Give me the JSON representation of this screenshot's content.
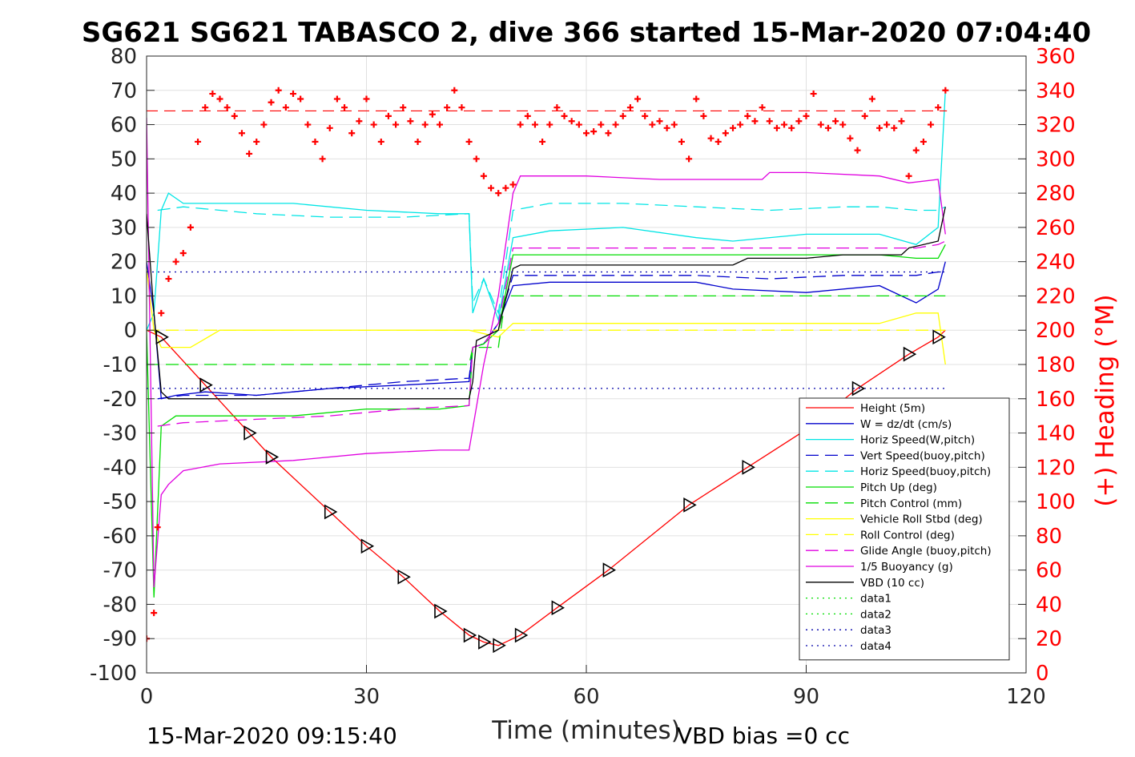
{
  "title": "SG621 SG621 TABASCO 2, dive 366 started 15-Mar-2020 07:04:40",
  "footer": {
    "end_time": "15-Mar-2020 09:15:40",
    "vbd_bias": "VBD bias =0 cc"
  },
  "chart_data": {
    "type": "line",
    "title": "SG621 SG621 TABASCO 2, dive 366 started 15-Mar-2020 07:04:40",
    "xlabel": "Time (minutes)",
    "ylabel": "",
    "y2label": "(+) Heading (°M)",
    "xlim": [
      0,
      120
    ],
    "ylim": [
      -100,
      80
    ],
    "y2lim": [
      0,
      360
    ],
    "xticks": [
      "0",
      "30",
      "60",
      "90",
      "120"
    ],
    "yticks": [
      "80",
      "70",
      "60",
      "50",
      "40",
      "30",
      "20",
      "10",
      "0",
      "-10",
      "-20",
      "-30",
      "-40",
      "-50",
      "-60",
      "-70",
      "-80",
      "-90",
      "-100"
    ],
    "y2ticks": [
      "360",
      "340",
      "320",
      "300",
      "280",
      "260",
      "240",
      "220",
      "200",
      "180",
      "160",
      "140",
      "120",
      "100",
      "80",
      "60",
      "40",
      "20",
      "0"
    ],
    "grid": true,
    "legend_position": "lower-right",
    "series": [
      {
        "name": "Height (5m)",
        "color": "#ff0000",
        "style": "solid",
        "x": [
          0,
          2,
          8,
          14,
          17,
          25,
          30,
          35,
          40,
          44,
          46,
          48,
          51,
          56,
          63,
          74,
          82,
          90,
          97,
          104,
          108,
          109
        ],
        "y": [
          0,
          -2,
          -16,
          -30,
          -37,
          -53,
          -63,
          -72,
          -82,
          -89,
          -91,
          -92,
          -89,
          -81,
          -70,
          -51,
          -40,
          -29,
          -17,
          -7,
          -2,
          0
        ]
      },
      {
        "name": "W = dz/dt (cm/s)",
        "color": "#0000cc",
        "style": "solid",
        "x": [
          0,
          1,
          2,
          4,
          8,
          15,
          25,
          35,
          44,
          44.5,
          46,
          48,
          50,
          55,
          65,
          75,
          80,
          90,
          100,
          105,
          108,
          109
        ],
        "y": [
          20,
          5,
          -20,
          -19,
          -18,
          -19,
          -17,
          -16,
          -15,
          -5,
          -4,
          2,
          13,
          14,
          14,
          14,
          12,
          11,
          13,
          8,
          12,
          20
        ]
      },
      {
        "name": "Horiz Speed(W,pitch)",
        "color": "#00e5e5",
        "style": "solid",
        "x": [
          0,
          1,
          2,
          3,
          5,
          10,
          20,
          30,
          40,
          44,
          44.5,
          46,
          48,
          50,
          55,
          65,
          75,
          80,
          90,
          100,
          105,
          108,
          109
        ],
        "y": [
          0,
          5,
          35,
          40,
          37,
          37,
          37,
          35,
          34,
          34,
          5,
          15,
          3,
          27,
          29,
          30,
          27,
          26,
          28,
          28,
          25,
          30,
          70
        ]
      },
      {
        "name": "Vert Speed(buoy,pitch)",
        "color": "#0000cc",
        "style": "dashed",
        "x": [
          1.5,
          5,
          15,
          25,
          35,
          44,
          44.5,
          46,
          48,
          50,
          55,
          65,
          75,
          85,
          95,
          100,
          105,
          108,
          109
        ],
        "y": [
          -20,
          -19,
          -19,
          -17,
          -15,
          -14,
          -5,
          -4,
          2,
          16,
          16,
          16,
          16,
          15,
          16,
          16,
          16,
          17,
          17
        ]
      },
      {
        "name": "Horiz Speed(buoy,pitch)",
        "color": "#00e5e5",
        "style": "dashed",
        "x": [
          1.5,
          5,
          15,
          25,
          35,
          44,
          44.5,
          46,
          48,
          50,
          55,
          65,
          75,
          85,
          95,
          100,
          105,
          108,
          109
        ],
        "y": [
          35,
          36,
          34,
          33,
          33,
          34,
          8,
          15,
          5,
          35,
          37,
          37,
          36,
          35,
          36,
          36,
          35,
          35,
          36
        ]
      },
      {
        "name": "Pitch Up (deg)",
        "color": "#00dd00",
        "style": "solid",
        "x": [
          0,
          1,
          2,
          4,
          10,
          20,
          30,
          40,
          44,
          44.5,
          46,
          48,
          50,
          55,
          65,
          75,
          85,
          95,
          100,
          105,
          108,
          109
        ],
        "y": [
          0,
          -78,
          -28,
          -25,
          -25,
          -25,
          -23,
          -23,
          -22,
          -5,
          -4,
          0,
          22,
          22,
          22,
          22,
          22,
          22,
          22,
          21,
          21,
          25
        ]
      },
      {
        "name": "Pitch Control (mm)",
        "color": "#00dd00",
        "style": "dashed",
        "x": [
          0,
          44,
          44.5,
          48,
          49,
          109
        ],
        "y": [
          -10,
          -10,
          -5,
          -5,
          10,
          10
        ]
      },
      {
        "name": "Vehicle Roll Stbd (deg)",
        "color": "#ffff00",
        "style": "solid",
        "x": [
          0,
          1,
          2,
          3,
          6,
          10,
          15,
          25,
          35,
          40,
          43,
          44,
          48,
          50,
          55,
          65,
          75,
          85,
          95,
          100,
          105,
          108,
          109
        ],
        "y": [
          18,
          0,
          -5,
          -5,
          -5,
          0,
          0,
          0,
          0,
          0,
          0,
          0,
          -2,
          2,
          2,
          2,
          2,
          2,
          2,
          2,
          5,
          5,
          -10
        ]
      },
      {
        "name": "Roll Control (deg)",
        "color": "#ffff00",
        "style": "dashed",
        "x": [
          0,
          44,
          45,
          109
        ],
        "y": [
          0,
          0,
          0,
          0
        ]
      },
      {
        "name": "Glide Angle (buoy,pitch)",
        "color": "#e000e0",
        "style": "dashed",
        "x": [
          1.5,
          5,
          15,
          25,
          35,
          44,
          44.5,
          46,
          48,
          50,
          55,
          65,
          75,
          85,
          95,
          100,
          105,
          108,
          109
        ],
        "y": [
          -28,
          -27,
          -26,
          -25,
          -23,
          -22,
          -5,
          -4,
          2,
          24,
          24,
          24,
          24,
          24,
          24,
          24,
          24,
          25,
          26
        ]
      },
      {
        "name": "1/5 Buoyancy (g)",
        "color": "#e000e0",
        "style": "solid",
        "x": [
          0,
          1,
          2,
          3,
          5,
          10,
          20,
          30,
          40,
          44,
          46,
          48,
          50,
          51,
          60,
          70,
          78,
          84,
          85,
          90,
          100,
          104,
          108,
          109
        ],
        "y": [
          62,
          -75,
          -48,
          -45,
          -41,
          -39,
          -38,
          -36,
          -35,
          -35,
          -10,
          10,
          40,
          45,
          45,
          44,
          44,
          44,
          46,
          46,
          45,
          43,
          44,
          28
        ]
      },
      {
        "name": "VBD (10 cc)",
        "color": "#000000",
        "style": "solid",
        "x": [
          0,
          1,
          2,
          3,
          10,
          20,
          30,
          40,
          44,
          44.5,
          45,
          48,
          50,
          51,
          60,
          70,
          80,
          82,
          90,
          95,
          100,
          103,
          104,
          108,
          109
        ],
        "y": [
          34,
          5,
          -18,
          -20,
          -20,
          -20,
          -20,
          -20,
          -20,
          -15,
          -3,
          0,
          18,
          19,
          19,
          19,
          19,
          21,
          21,
          22,
          22,
          22,
          24,
          26,
          36
        ]
      },
      {
        "name": "data1",
        "color": "#00dd00",
        "style": "dotted",
        "x": [],
        "y": []
      },
      {
        "name": "data2",
        "color": "#00dd00",
        "style": "dotted",
        "x": [],
        "y": []
      },
      {
        "name": "data3",
        "color": "#0000aa",
        "style": "dotted",
        "x": [
          0,
          109
        ],
        "y": [
          17,
          17
        ]
      },
      {
        "name": "data4",
        "color": "#0000aa",
        "style": "dotted",
        "x": [
          0,
          109
        ],
        "y": [
          -17,
          -17
        ]
      }
    ],
    "heading": {
      "name": "(+) Heading (°M)",
      "color": "#ff0000",
      "marker": "+",
      "reference_level": 328,
      "x": [
        0,
        1,
        1.5,
        2,
        3,
        4,
        5,
        6,
        7,
        8,
        9,
        10,
        11,
        12,
        13,
        14,
        15,
        16,
        17,
        18,
        19,
        20,
        21,
        22,
        23,
        24,
        25,
        26,
        27,
        28,
        29,
        30,
        31,
        32,
        33,
        34,
        35,
        36,
        37,
        38,
        39,
        40,
        41,
        42,
        43,
        44,
        45,
        46,
        47,
        48,
        49,
        50,
        51,
        52,
        53,
        54,
        55,
        56,
        57,
        58,
        59,
        60,
        61,
        62,
        63,
        64,
        65,
        66,
        67,
        68,
        69,
        70,
        71,
        72,
        73,
        74,
        75,
        76,
        77,
        78,
        79,
        80,
        81,
        82,
        83,
        84,
        85,
        86,
        87,
        88,
        89,
        90,
        91,
        92,
        93,
        94,
        95,
        96,
        97,
        98,
        99,
        100,
        101,
        102,
        103,
        104,
        105,
        106,
        107,
        108,
        109
      ],
      "y": [
        20,
        35,
        85,
        210,
        230,
        240,
        245,
        260,
        310,
        330,
        338,
        335,
        330,
        325,
        315,
        303,
        310,
        320,
        333,
        340,
        330,
        338,
        335,
        320,
        310,
        300,
        318,
        335,
        330,
        315,
        322,
        335,
        320,
        310,
        325,
        320,
        330,
        322,
        310,
        320,
        326,
        320,
        330,
        340,
        330,
        310,
        300,
        290,
        283,
        280,
        283,
        285,
        320,
        325,
        320,
        310,
        320,
        330,
        325,
        322,
        320,
        315,
        316,
        320,
        315,
        320,
        325,
        330,
        335,
        325,
        320,
        322,
        318,
        320,
        310,
        300,
        335,
        325,
        312,
        310,
        315,
        318,
        320,
        325,
        322,
        330,
        322,
        318,
        320,
        318,
        322,
        325,
        338,
        320,
        318,
        322,
        320,
        312,
        305,
        325,
        335,
        318,
        320,
        318,
        322,
        290,
        305,
        310,
        320,
        330,
        340
      ]
    }
  }
}
